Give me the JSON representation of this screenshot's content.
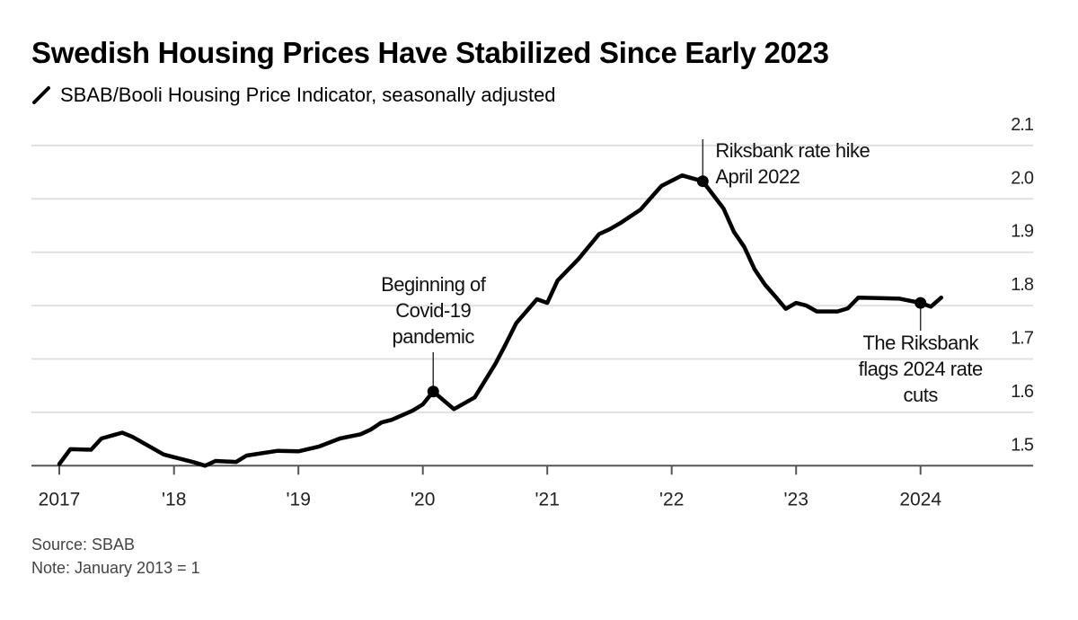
{
  "title": "Swedish Housing Prices Have Stabilized Since Early 2023",
  "chart_data": {
    "type": "line",
    "title": "Swedish Housing Prices Have Stabilized Since Early 2023",
    "series": [
      {
        "name": "SBAB/Booli Housing Price Indicator, seasonally adjusted",
        "color": "#000000",
        "points": [
          [
            "2017-01",
            1.503
          ],
          [
            "2017-03",
            1.531
          ],
          [
            "2017-05",
            1.53
          ],
          [
            "2017-06",
            1.551
          ],
          [
            "2017-08",
            1.562
          ],
          [
            "2017-09",
            1.554
          ],
          [
            "2017-12",
            1.521
          ],
          [
            "2018-01",
            1.516
          ],
          [
            "2018-03",
            1.506
          ],
          [
            "2018-04",
            1.5
          ],
          [
            "2018-05",
            1.509
          ],
          [
            "2018-07",
            1.507
          ],
          [
            "2018-08",
            1.519
          ],
          [
            "2018-11",
            1.528
          ],
          [
            "2019-01",
            1.527
          ],
          [
            "2019-03",
            1.536
          ],
          [
            "2019-05",
            1.551
          ],
          [
            "2019-07",
            1.559
          ],
          [
            "2019-08",
            1.568
          ],
          [
            "2019-09",
            1.581
          ],
          [
            "2019-10",
            1.586
          ],
          [
            "2019-12",
            1.603
          ],
          [
            "2020-01",
            1.615
          ],
          [
            "2020-02",
            1.639
          ],
          [
            "2020-04",
            1.606
          ],
          [
            "2020-06",
            1.628
          ],
          [
            "2020-08",
            1.691
          ],
          [
            "2020-09",
            1.728
          ],
          [
            "2020-10",
            1.767
          ],
          [
            "2020-12",
            1.812
          ],
          [
            "2021-01",
            1.805
          ],
          [
            "2021-02",
            1.847
          ],
          [
            "2021-04",
            1.887
          ],
          [
            "2021-06",
            1.934
          ],
          [
            "2021-07",
            1.943
          ],
          [
            "2021-08",
            1.954
          ],
          [
            "2021-10",
            1.98
          ],
          [
            "2021-11",
            2.002
          ],
          [
            "2021-12",
            2.024
          ],
          [
            "2022-02",
            2.044
          ],
          [
            "2022-04",
            2.033
          ],
          [
            "2022-06",
            1.982
          ],
          [
            "2022-07",
            1.938
          ],
          [
            "2022-08",
            1.91
          ],
          [
            "2022-09",
            1.868
          ],
          [
            "2022-10",
            1.839
          ],
          [
            "2022-11",
            1.817
          ],
          [
            "2022-12",
            1.794
          ],
          [
            "2023-01",
            1.805
          ],
          [
            "2023-02",
            1.8
          ],
          [
            "2023-03",
            1.789
          ],
          [
            "2023-05",
            1.789
          ],
          [
            "2023-06",
            1.795
          ],
          [
            "2023-07",
            1.815
          ],
          [
            "2023-09",
            1.814
          ],
          [
            "2023-11",
            1.813
          ],
          [
            "2024-01",
            1.805
          ],
          [
            "2024-02",
            1.798
          ],
          [
            "2024-03",
            1.815
          ]
        ]
      }
    ],
    "x_ticks": [
      {
        "date": "2017-01",
        "label": "2017"
      },
      {
        "date": "2018-01",
        "label": "'18"
      },
      {
        "date": "2019-01",
        "label": "'19"
      },
      {
        "date": "2020-01",
        "label": "'20"
      },
      {
        "date": "2021-01",
        "label": "'21"
      },
      {
        "date": "2022-01",
        "label": "'22"
      },
      {
        "date": "2023-01",
        "label": "'23"
      },
      {
        "date": "2024-01",
        "label": "2024"
      }
    ],
    "y_ticks": [
      1.5,
      1.6,
      1.7,
      1.8,
      1.9,
      2.0,
      2.1
    ],
    "y_tick_labels": [
      "1.5",
      "1.6",
      "1.7",
      "1.8",
      "1.9",
      "2.0",
      "2.1"
    ],
    "ylim": [
      1.5,
      2.1
    ],
    "y_axis_position": "right",
    "grid": true,
    "annotations": [
      {
        "date": "2020-02",
        "value": 1.639,
        "lines": [
          "Beginning of",
          "Covid-19",
          "pandemic"
        ]
      },
      {
        "date": "2022-04",
        "value": 2.033,
        "lines": [
          "Riksbank rate hike",
          "April 2022"
        ]
      },
      {
        "date": "2024-01",
        "value": 1.805,
        "lines": [
          "The Riksbank",
          "flags 2024 rate",
          "cuts"
        ]
      }
    ]
  },
  "footer": {
    "source": "Source: SBAB",
    "note": "Note: January 2013 = 1"
  }
}
